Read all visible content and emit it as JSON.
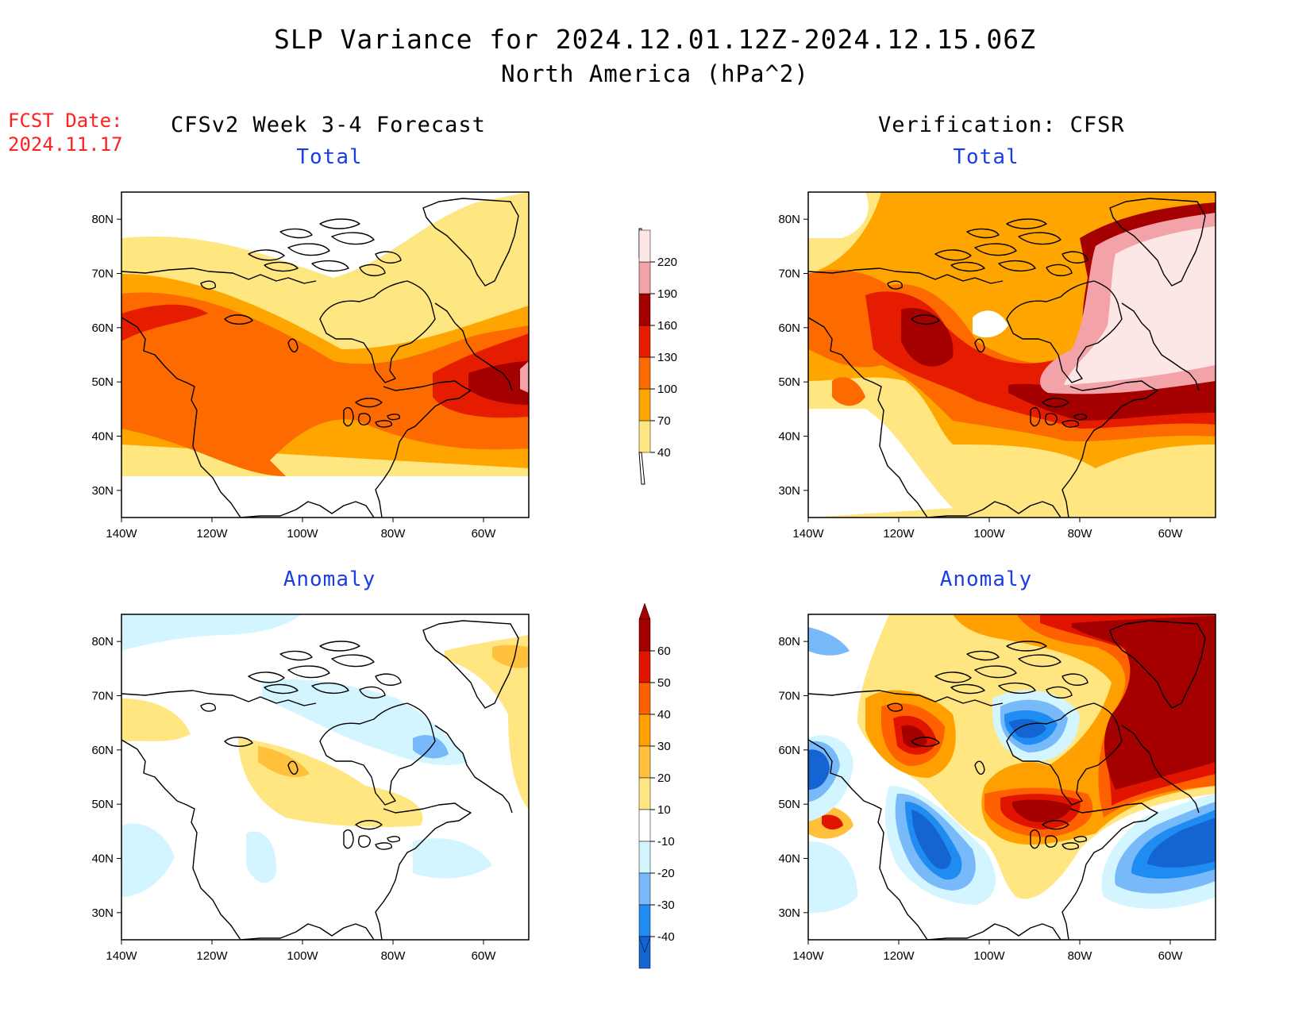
{
  "header": {
    "title": "SLP Variance for 2024.12.01.12Z-2024.12.15.06Z",
    "subtitle": "North America (hPa^2)",
    "fcst_date_label": "FCST Date:",
    "fcst_date_value": "2024.11.17"
  },
  "columns": {
    "left": "CFSv2 Week 3-4 Forecast",
    "right": "Verification: CFSR"
  },
  "panels": [
    {
      "id": "fcst-total",
      "title": "Total"
    },
    {
      "id": "verif-total",
      "title": "Total"
    },
    {
      "id": "fcst-anomaly",
      "title": "Anomaly"
    },
    {
      "id": "verif-anomaly",
      "title": "Anomaly"
    }
  ],
  "axes": {
    "lat_labels": [
      "80N",
      "70N",
      "60N",
      "50N",
      "40N",
      "30N"
    ],
    "lon_labels": [
      "140W",
      "120W",
      "100W",
      "80W",
      "60W"
    ],
    "lat_values": [
      80,
      70,
      60,
      50,
      40,
      30
    ],
    "lon_values": [
      -140,
      -120,
      -100,
      -80,
      -60
    ],
    "lon_range": [
      -140,
      -50
    ],
    "lat_range": [
      25,
      85
    ]
  },
  "colorbars": {
    "total": {
      "labels": [
        "40",
        "70",
        "100",
        "130",
        "160",
        "190",
        "220"
      ],
      "colors": [
        "#fee680",
        "#fea500",
        "#fd6a00",
        "#e61c00",
        "#a50000",
        "#f3a3a8",
        "#fde6e6"
      ]
    },
    "anomaly": {
      "labels": [
        "-40",
        "-30",
        "-20",
        "-10",
        "10",
        "20",
        "30",
        "40",
        "50",
        "60"
      ],
      "colors": [
        "#1464d2",
        "#1e8cf0",
        "#78b9fa",
        "#d2f5ff",
        "#ffffff",
        "#ffe680",
        "#ffc03c",
        "#ffa000",
        "#ff6000",
        "#e11400",
        "#a50000"
      ]
    }
  },
  "legend_values": {
    "total_palette_note": "",
    "anomaly_palette_note": ""
  }
}
